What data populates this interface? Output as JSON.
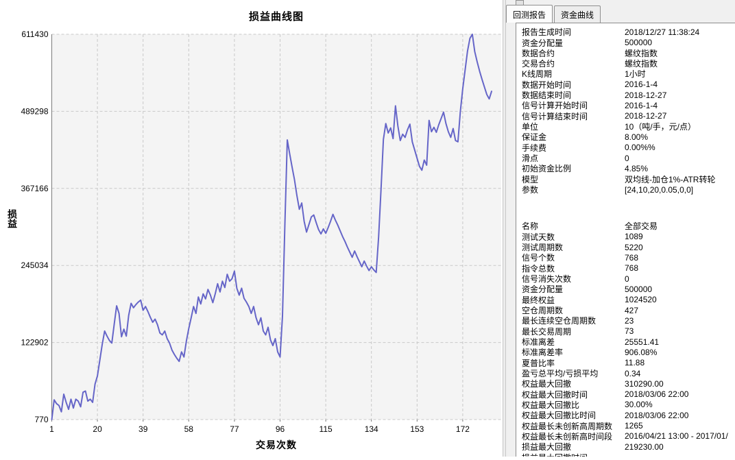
{
  "chart_data": {
    "type": "line",
    "title": "损益曲线图",
    "xlabel": "交易次数",
    "ylabel": "损益",
    "legend": "none",
    "grid": "dashed",
    "plot_bg": "#f4f4f4",
    "grid_color": "#c8c8c8",
    "axis_color": "#7a7a7a",
    "line_color": "#6565c8",
    "x_ticks": [
      1,
      20,
      39,
      58,
      77,
      96,
      115,
      134,
      153,
      172
    ],
    "y_ticks": [
      770,
      122902,
      245034,
      367166,
      489298,
      611430
    ],
    "xlim": [
      1,
      188
    ],
    "ylim": [
      770,
      611430
    ],
    "x_start": 1,
    "x_step": 1,
    "values": [
      770,
      32000,
      26000,
      23000,
      13000,
      41000,
      28000,
      17000,
      33000,
      19000,
      33000,
      30000,
      21000,
      44000,
      46000,
      30000,
      33000,
      28000,
      57000,
      70000,
      95000,
      120000,
      141000,
      133000,
      126000,
      122000,
      152000,
      181000,
      169000,
      132000,
      144000,
      133000,
      166000,
      185000,
      178000,
      183000,
      187000,
      190000,
      174000,
      180000,
      172000,
      163000,
      155000,
      160000,
      151000,
      138000,
      135000,
      141000,
      129000,
      122000,
      111000,
      104000,
      98000,
      93000,
      108000,
      100000,
      125000,
      145000,
      162000,
      180000,
      169000,
      195000,
      184000,
      200000,
      192000,
      207000,
      198000,
      186000,
      200000,
      216000,
      203000,
      220000,
      210000,
      231000,
      220000,
      224000,
      236000,
      209000,
      198000,
      209000,
      193000,
      187000,
      180000,
      169000,
      180000,
      162000,
      151000,
      162000,
      141000,
      135000,
      147000,
      127000,
      118000,
      129000,
      108000,
      100000,
      165000,
      310000,
      444000,
      422000,
      401000,
      381000,
      356000,
      334000,
      344000,
      315000,
      298000,
      310000,
      322000,
      325000,
      313000,
      302000,
      295000,
      303000,
      296000,
      305000,
      315000,
      326000,
      317000,
      309000,
      300000,
      291000,
      283000,
      274000,
      266000,
      258000,
      268000,
      259000,
      251000,
      243000,
      252000,
      244000,
      237000,
      243000,
      238000,
      234000,
      290000,
      365000,
      445000,
      470000,
      455000,
      463000,
      446000,
      498000,
      466000,
      443000,
      453000,
      448000,
      460000,
      469000,
      441000,
      428000,
      415000,
      402000,
      396000,
      412000,
      404000,
      475000,
      457000,
      464000,
      456000,
      468000,
      478000,
      488000,
      470000,
      457000,
      448000,
      462000,
      443000,
      441000,
      489000,
      525000,
      555000,
      585000,
      605000,
      611430,
      584000,
      568000,
      553000,
      540000,
      528000,
      516000,
      509000,
      521000
    ]
  },
  "report_panel": {
    "tabs": [
      {
        "label": "回测报告",
        "active": true
      },
      {
        "label": "资金曲线",
        "active": false
      }
    ],
    "sections": [
      {
        "rows": [
          {
            "label": "报告生成时间",
            "value": "2018/12/27 11:38:24"
          },
          {
            "label": "资金分配量",
            "value": "500000"
          },
          {
            "label": "数据合约",
            "value": "螺纹指数"
          },
          {
            "label": "交易合约",
            "value": "螺纹指数"
          },
          {
            "label": "K线周期",
            "value": "1小时"
          },
          {
            "label": "数据开始时间",
            "value": "2016-1-4"
          },
          {
            "label": "数据结束时间",
            "value": "2018-12-27"
          },
          {
            "label": "信号计算开始时间",
            "value": "2016-1-4"
          },
          {
            "label": "信号计算结束时间",
            "value": "2018-12-27"
          },
          {
            "label": "单位",
            "value": "10（吨/手，元/点）"
          },
          {
            "label": "保证金",
            "value": "8.00%"
          },
          {
            "label": "手续费",
            "value": "0.00%%"
          },
          {
            "label": "滑点",
            "value": "0"
          },
          {
            "label": "初始资金比例",
            "value": "4.85%"
          },
          {
            "label": "模型",
            "value": "双均线-加仓1%-ATR转轮"
          },
          {
            "label": "参数",
            "value": "[24,10,20,0.05,0,0]"
          }
        ]
      },
      {
        "rows": [
          {
            "label": "名称",
            "value": "全部交易"
          },
          {
            "label": "测试天数",
            "value": "1089"
          },
          {
            "label": "测试周期数",
            "value": "5220"
          },
          {
            "label": "信号个数",
            "value": "768"
          },
          {
            "label": "指令总数",
            "value": "768"
          },
          {
            "label": "信号消失次数",
            "value": "0"
          },
          {
            "label": "资金分配量",
            "value": "500000"
          },
          {
            "label": "最终权益",
            "value": "1024520"
          },
          {
            "label": "空仓周期数",
            "value": "427"
          },
          {
            "label": "最长连续空仓周期数",
            "value": "23"
          },
          {
            "label": "最长交易周期",
            "value": "73"
          },
          {
            "label": "标准离差",
            "value": "25551.41"
          },
          {
            "label": "标准离差率",
            "value": "906.08%"
          },
          {
            "label": "夏普比率",
            "value": "11.88"
          },
          {
            "label": "盈亏总平均/亏损平均",
            "value": "0.34"
          },
          {
            "label": "权益最大回撤",
            "value": "310290.00"
          },
          {
            "label": "权益最大回撤时间",
            "value": "2018/03/06 22:00"
          },
          {
            "label": "权益最大回撤比",
            "value": "30.00%"
          },
          {
            "label": "权益最大回撤比时间",
            "value": "2018/03/06 22:00"
          },
          {
            "label": "权益最长未创新高周期数",
            "value": "1265"
          },
          {
            "label": "权益最长未创新高时间段",
            "value": "2016/04/21 13:00 - 2017/01/"
          },
          {
            "label": "损益最大回撤",
            "value": "219230.00"
          },
          {
            "label": "损益最大回撤时间",
            "value": ""
          }
        ]
      }
    ]
  }
}
